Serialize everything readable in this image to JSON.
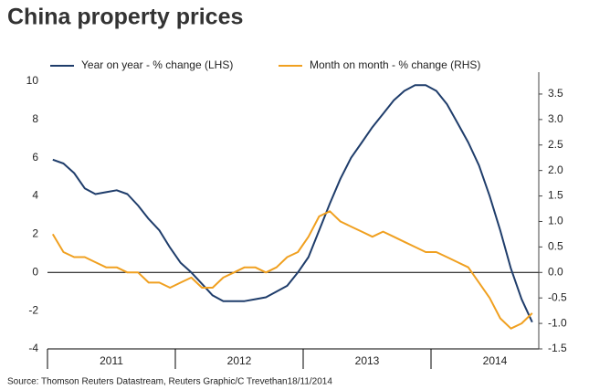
{
  "chart_data": {
    "type": "line",
    "title": "China property prices",
    "source": "Source: Thomson Reuters Datastream, Reuters Graphic/C Trevethan18/11/2014",
    "years": [
      "2011",
      "2012",
      "2013",
      "2014"
    ],
    "series": [
      {
        "name": "Year on year - % change (LHS)",
        "color": "#1f3d6b",
        "axis": "y",
        "values": [
          5.9,
          5.7,
          5.2,
          4.4,
          4.1,
          4.2,
          4.3,
          4.1,
          3.5,
          2.8,
          2.2,
          1.3,
          0.5,
          0.0,
          -0.6,
          -1.2,
          -1.5,
          -1.5,
          -1.5,
          -1.4,
          -1.3,
          -1.0,
          -0.7,
          0.0,
          0.8,
          2.2,
          3.6,
          4.9,
          6.0,
          6.8,
          7.6,
          8.3,
          9.0,
          9.5,
          9.8,
          9.8,
          9.5,
          8.8,
          7.8,
          6.8,
          5.6,
          4.0,
          2.2,
          0.2,
          -1.4,
          -2.6
        ]
      },
      {
        "name": "Month on month - % change (RHS)",
        "color": "#f0a020",
        "axis": "y2",
        "values": [
          0.75,
          0.4,
          0.3,
          0.3,
          0.2,
          0.1,
          0.1,
          0.0,
          0.0,
          -0.2,
          -0.2,
          -0.3,
          -0.2,
          -0.1,
          -0.3,
          -0.3,
          -0.1,
          0.0,
          0.1,
          0.1,
          0.0,
          0.1,
          0.3,
          0.4,
          0.7,
          1.1,
          1.2,
          1.0,
          0.9,
          0.8,
          0.7,
          0.8,
          0.7,
          0.6,
          0.5,
          0.4,
          0.4,
          0.3,
          0.2,
          0.1,
          -0.2,
          -0.5,
          -0.9,
          -1.1,
          -1.0,
          -0.8
        ]
      }
    ],
    "ylim": [
      -4,
      10
    ],
    "yticks": [
      -4,
      -2,
      0,
      2,
      4,
      6,
      8,
      10
    ],
    "y2lim": [
      -1.5,
      3.75
    ],
    "y2ticks": [
      -1.5,
      {
        "value": -1,
        "label": "-1.0"
      },
      -0.5,
      {
        "value": 0,
        "label": "0.0"
      },
      0.5,
      {
        "value": 1,
        "label": "1.0"
      },
      1.5,
      {
        "value": 2,
        "label": "2.0"
      },
      2.5,
      {
        "value": 3,
        "label": "3.0"
      },
      3.5
    ],
    "legend": "top"
  }
}
